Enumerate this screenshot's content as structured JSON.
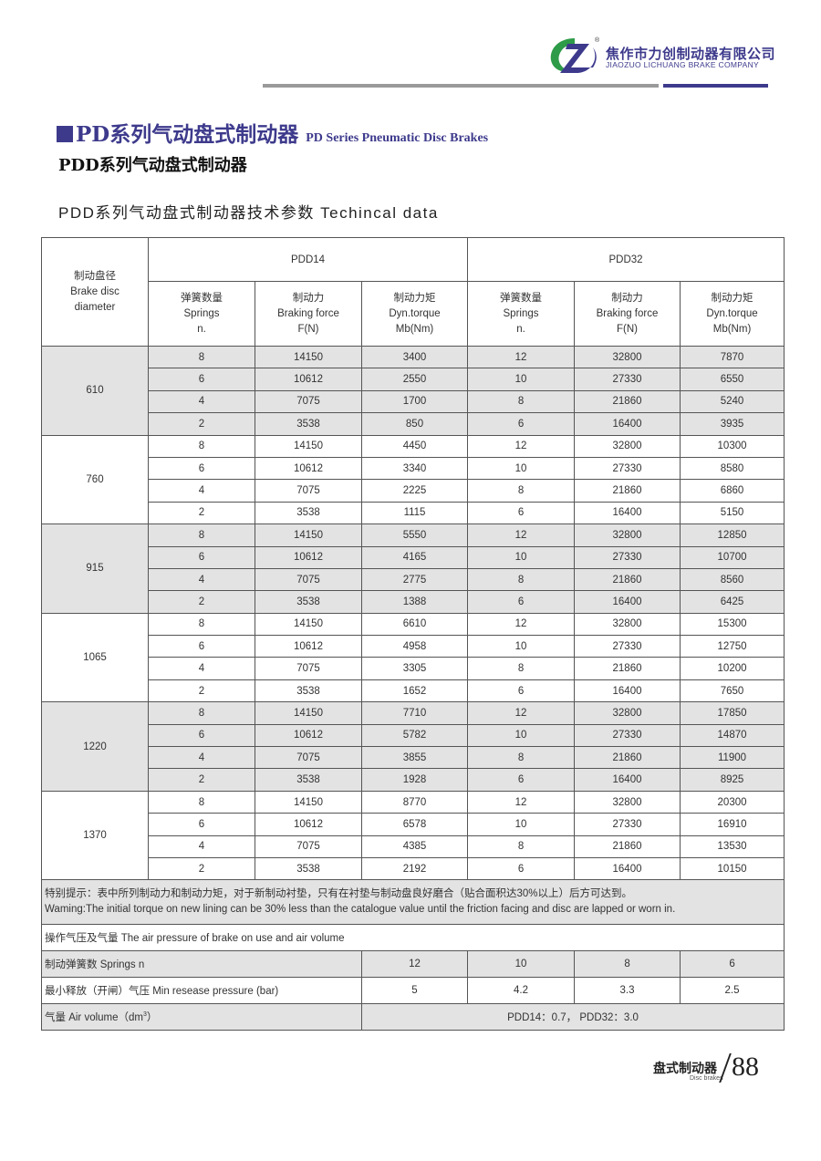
{
  "header": {
    "company_cn": "焦作市力创制动器有限公司",
    "company_en": "JIAOZUO LICHUANG BRAKE COMPANY",
    "logo_colors": {
      "green": "#2e9b48",
      "purple": "#3d3a8c"
    }
  },
  "titles": {
    "series_cn": "PD系列气动盘式制动器",
    "series_en": "PD Series Pneumatic Disc Brakes",
    "sub": "PDD系列气动盘式制动器",
    "table_title": "PDD系列气动盘式制动器技术参数 Techincal data"
  },
  "table": {
    "diameter_header": [
      "制动盘径",
      "Brake disc",
      "diameter"
    ],
    "models": [
      "PDD14",
      "PDD32"
    ],
    "col_headers": [
      [
        "弹簧数量",
        "Springs",
        "n."
      ],
      [
        "制动力",
        "Braking force",
        "F(N)"
      ],
      [
        "制动力矩",
        "Dyn.torque",
        "Mb(Nm)"
      ]
    ],
    "groups": [
      {
        "diameter": "610",
        "rows": [
          [
            "8",
            "14150",
            "3400",
            "12",
            "32800",
            "7870"
          ],
          [
            "6",
            "10612",
            "2550",
            "10",
            "27330",
            "6550"
          ],
          [
            "4",
            "7075",
            "1700",
            "8",
            "21860",
            "5240"
          ],
          [
            "2",
            "3538",
            "850",
            "6",
            "16400",
            "3935"
          ]
        ]
      },
      {
        "diameter": "760",
        "rows": [
          [
            "8",
            "14150",
            "4450",
            "12",
            "32800",
            "10300"
          ],
          [
            "6",
            "10612",
            "3340",
            "10",
            "27330",
            "8580"
          ],
          [
            "4",
            "7075",
            "2225",
            "8",
            "21860",
            "6860"
          ],
          [
            "2",
            "3538",
            "1115",
            "6",
            "16400",
            "5150"
          ]
        ]
      },
      {
        "diameter": "915",
        "rows": [
          [
            "8",
            "14150",
            "5550",
            "12",
            "32800",
            "12850"
          ],
          [
            "6",
            "10612",
            "4165",
            "10",
            "27330",
            "10700"
          ],
          [
            "4",
            "7075",
            "2775",
            "8",
            "21860",
            "8560"
          ],
          [
            "2",
            "3538",
            "1388",
            "6",
            "16400",
            "6425"
          ]
        ]
      },
      {
        "diameter": "1065",
        "rows": [
          [
            "8",
            "14150",
            "6610",
            "12",
            "32800",
            "15300"
          ],
          [
            "6",
            "10612",
            "4958",
            "10",
            "27330",
            "12750"
          ],
          [
            "4",
            "7075",
            "3305",
            "8",
            "21860",
            "10200"
          ],
          [
            "2",
            "3538",
            "1652",
            "6",
            "16400",
            "7650"
          ]
        ]
      },
      {
        "diameter": "1220",
        "rows": [
          [
            "8",
            "14150",
            "7710",
            "12",
            "32800",
            "17850"
          ],
          [
            "6",
            "10612",
            "5782",
            "10",
            "27330",
            "14870"
          ],
          [
            "4",
            "7075",
            "3855",
            "8",
            "21860",
            "11900"
          ],
          [
            "2",
            "3538",
            "1928",
            "6",
            "16400",
            "8925"
          ]
        ]
      },
      {
        "diameter": "1370",
        "rows": [
          [
            "8",
            "14150",
            "8770",
            "12",
            "32800",
            "20300"
          ],
          [
            "6",
            "10612",
            "6578",
            "10",
            "27330",
            "16910"
          ],
          [
            "4",
            "7075",
            "4385",
            "8",
            "21860",
            "13530"
          ],
          [
            "2",
            "3538",
            "2192",
            "6",
            "16400",
            "10150"
          ]
        ]
      }
    ],
    "note_cn": "特别提示：表中所列制动力和制动力矩，对于新制动衬垫，只有在衬垫与制动盘良好磨合（贴合面积达30%以上）后方可达到。",
    "note_en": "Waming:The initial torque on new lining can be 30% less than the catalogue value until the friction facing and disc are lapped or worn in.",
    "air_title": "操作气压及气量 The air pressure of brake on use and air volume",
    "springs_label": "制动弹簧数  Springs  n",
    "springs_values": [
      "12",
      "10",
      "8",
      "6"
    ],
    "pressure_label": "最小释放（开闸）气压  Min resease pressure (bar)",
    "pressure_values": [
      "5",
      "4.2",
      "3.3",
      "2.5"
    ],
    "air_label": "气量  Air volume（dm",
    "air_label_sup": "3",
    "air_label_end": "）",
    "air_value": "PDD14：0.7，  PDD32：3.0"
  },
  "footer": {
    "cn": "盘式制动器",
    "en": "Disc brakes",
    "page": "88"
  }
}
